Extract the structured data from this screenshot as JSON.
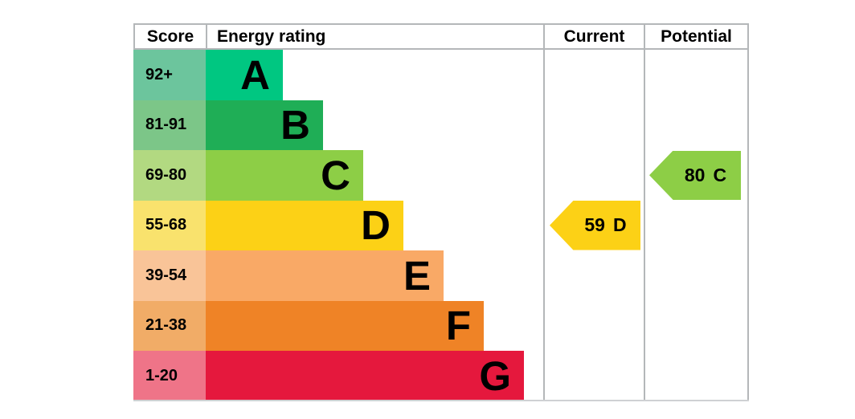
{
  "header": {
    "score": "Score",
    "energy_rating": "Energy rating",
    "current": "Current",
    "potential": "Potential"
  },
  "bands": [
    {
      "letter": "A",
      "score_range": "92+",
      "bar_color": "#00c781",
      "score_bg": "#6cc59d"
    },
    {
      "letter": "B",
      "score_range": "81-91",
      "bar_color": "#1fae56",
      "score_bg": "#7cc688"
    },
    {
      "letter": "C",
      "score_range": "69-80",
      "bar_color": "#8dce46",
      "score_bg": "#b2d981"
    },
    {
      "letter": "D",
      "score_range": "55-68",
      "bar_color": "#fcd116",
      "score_bg": "#f9e26d"
    },
    {
      "letter": "E",
      "score_range": "39-54",
      "bar_color": "#f9a966",
      "score_bg": "#f9c498"
    },
    {
      "letter": "F",
      "score_range": "21-38",
      "bar_color": "#ef8326",
      "score_bg": "#f1ac67"
    },
    {
      "letter": "G",
      "score_range": "1-20",
      "bar_color": "#e5183d",
      "score_bg": "#ef7488"
    }
  ],
  "current_marker": {
    "score": "59",
    "band": "D",
    "color": "#fcd116",
    "band_index": 3
  },
  "potential_marker": {
    "score": "80",
    "band": "C",
    "color": "#8dce46",
    "band_index": 2
  },
  "colors": {
    "grid_border": "#b4b7b9",
    "text": "#000000",
    "background": "#ffffff"
  },
  "chart_data": {
    "type": "bar",
    "orientation": "horizontal",
    "title": "Energy rating",
    "columns": [
      "Score",
      "Energy rating",
      "Current",
      "Potential"
    ],
    "categories": [
      "A",
      "B",
      "C",
      "D",
      "E",
      "F",
      "G"
    ],
    "score_ranges": [
      "92+",
      "81-91",
      "69-80",
      "55-68",
      "39-54",
      "21-38",
      "1-20"
    ],
    "bar_relative_lengths": [
      1,
      2,
      3,
      4,
      5,
      6,
      7
    ],
    "band_colors": [
      "#00c781",
      "#1fae56",
      "#8dce46",
      "#fcd116",
      "#f9a966",
      "#ef8326",
      "#e5183d"
    ],
    "current": {
      "score": 59,
      "band": "D"
    },
    "potential": {
      "score": 80,
      "band": "C"
    },
    "legend_position": "none",
    "grid": false
  }
}
